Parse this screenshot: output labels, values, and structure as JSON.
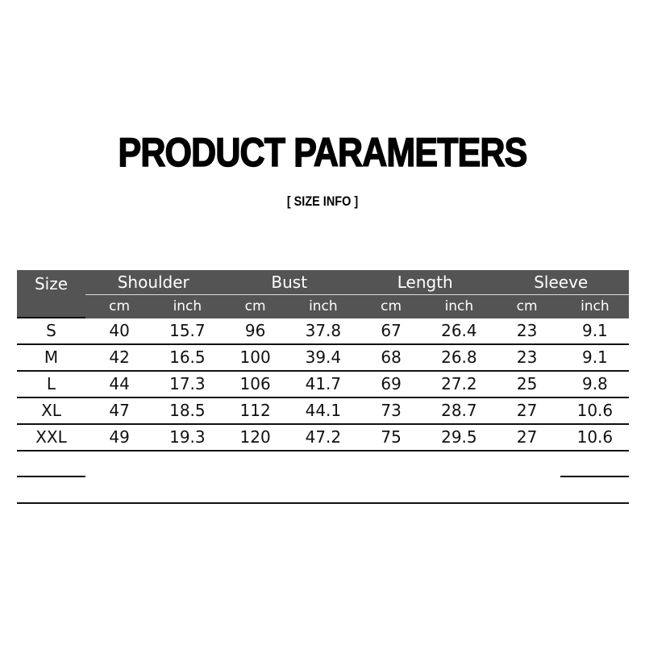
{
  "title": "PRODUCT PARAMETERS",
  "subtitle": "[ SIZE  INFO ]",
  "table": {
    "size_header": "Size",
    "groups": [
      "Shoulder",
      "Bust",
      "Length",
      "Sleeve"
    ],
    "units": [
      "cm",
      "inch"
    ],
    "rows": [
      [
        "S",
        "40",
        "15.7",
        "96",
        "37.8",
        "67",
        "26.4",
        "23",
        "9.1"
      ],
      [
        "M",
        "42",
        "16.5",
        "100",
        "39.4",
        "68",
        "26.8",
        "23",
        "9.1"
      ],
      [
        "L",
        "44",
        "17.3",
        "106",
        "41.7",
        "69",
        "27.2",
        "25",
        "9.8"
      ],
      [
        "XL",
        "47",
        "18.5",
        "112",
        "44.1",
        "73",
        "28.7",
        "27",
        "10.6"
      ],
      [
        "XXL",
        "49",
        "19.3",
        "120",
        "47.2",
        "75",
        "29.5",
        "27",
        "10.6"
      ]
    ]
  },
  "colors": {
    "header_bg": "#545454",
    "header_text": "#ffffff"
  }
}
